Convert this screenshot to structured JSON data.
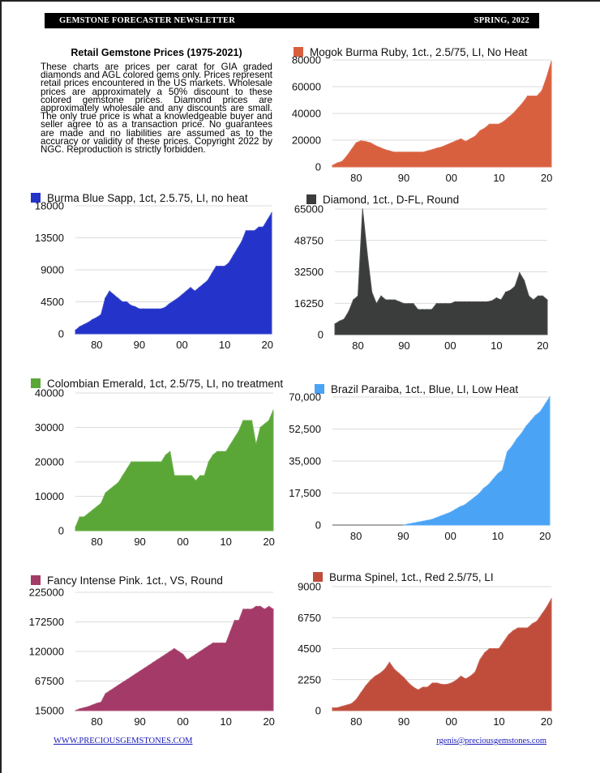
{
  "header": {
    "left": "GEMSTONE FORECASTER NEWSLETTER",
    "right": "SPRING, 2022"
  },
  "intro": {
    "title": "Retail Gemstone Prices (1975-2021)",
    "text": "These charts are prices per carat for GIA graded diamonds and AGL colored gems only. Prices represent retail prices encountered in the US markets. Wholesale prices are approximately a 50% discount to these colored gemstone prices. Diamond prices are approximately wholesale and any discounts are small. The only true price is what a knowledgeable buyer and seller agree to as a transaction price. No guarantees are made and no liabilities are assumed as to the accuracy or validity of these prices. Copyright 2022 by NGC. Reproduction is strictly forbidden."
  },
  "footer": {
    "left": "WWW.PRECIOUSGEMSTONES.COM",
    "right": "rgenis@preciousgemstones.com"
  },
  "chart_data": [
    {
      "type": "area",
      "id": "ruby",
      "title": "Mogok Burma Ruby, 1ct., 2.5/75, LI, No Heat",
      "color": "#d9603f",
      "x": [
        75,
        76,
        77,
        78,
        79,
        80,
        81,
        82,
        83,
        84,
        85,
        86,
        87,
        88,
        89,
        90,
        91,
        92,
        93,
        94,
        95,
        96,
        97,
        98,
        99,
        100,
        101,
        102,
        103,
        104,
        105,
        106,
        107,
        108,
        109,
        110,
        111,
        112,
        113,
        114,
        115,
        116,
        117,
        118,
        119,
        120,
        121
      ],
      "values": [
        1000,
        3000,
        4000,
        8000,
        13000,
        18000,
        19500,
        19000,
        18000,
        16000,
        14500,
        13000,
        12000,
        11000,
        11000,
        11000,
        11000,
        11000,
        11000,
        11000,
        12000,
        13000,
        14000,
        15000,
        16500,
        18000,
        19500,
        21000,
        19000,
        21000,
        23000,
        27000,
        29000,
        32000,
        32000,
        32000,
        34000,
        37000,
        40000,
        44000,
        48000,
        53000,
        53000,
        53000,
        57000,
        67000,
        79000
      ],
      "yticks": [
        0,
        20000,
        40000,
        60000,
        80000
      ],
      "ytick_labels": [
        "0",
        "20000",
        "40000",
        "60000",
        "80000"
      ],
      "ylim": [
        0,
        80000
      ],
      "xticks": [
        80,
        90,
        100,
        110,
        120
      ],
      "xtick_labels": [
        "80",
        "90",
        "00",
        "10",
        "20"
      ],
      "xlim": [
        75,
        121
      ]
    },
    {
      "type": "area",
      "id": "sapphire",
      "title": "Burma Blue Sapp, 1ct, 2.5.75, LI, no heat",
      "color": "#2433c9",
      "x": [
        75,
        76,
        77,
        78,
        79,
        80,
        81,
        82,
        83,
        84,
        85,
        86,
        87,
        88,
        89,
        90,
        91,
        92,
        93,
        94,
        95,
        96,
        97,
        98,
        99,
        100,
        101,
        102,
        103,
        104,
        105,
        106,
        107,
        108,
        109,
        110,
        111,
        112,
        113,
        114,
        115,
        116,
        117,
        118,
        119,
        120,
        121
      ],
      "values": [
        500,
        1000,
        1300,
        1600,
        2000,
        2300,
        2700,
        5000,
        6000,
        5500,
        5000,
        4500,
        4500,
        4000,
        3800,
        3500,
        3500,
        3500,
        3500,
        3500,
        3500,
        3700,
        4200,
        4600,
        5000,
        5500,
        6000,
        6500,
        6000,
        6500,
        7000,
        7500,
        8500,
        9500,
        9500,
        9500,
        10000,
        11000,
        12000,
        13000,
        14500,
        14500,
        14500,
        15000,
        15000,
        16000,
        17000
      ],
      "yticks": [
        0,
        4500,
        9000,
        13500,
        18000
      ],
      "ytick_labels": [
        "0",
        "4500",
        "9000",
        "13500",
        "18000"
      ],
      "ylim": [
        0,
        18000
      ],
      "xticks": [
        80,
        90,
        100,
        110,
        120
      ],
      "xtick_labels": [
        "80",
        "90",
        "00",
        "10",
        "20"
      ],
      "xlim": [
        75,
        121
      ]
    },
    {
      "type": "area",
      "id": "diamond",
      "title": "Diamond, 1ct., D-FL, Round",
      "color": "#3a3d3b",
      "x": [
        75,
        76,
        77,
        78,
        79,
        80,
        81,
        82,
        83,
        84,
        85,
        86,
        87,
        88,
        89,
        90,
        91,
        92,
        93,
        94,
        95,
        96,
        97,
        98,
        99,
        100,
        101,
        102,
        103,
        104,
        105,
        106,
        107,
        108,
        109,
        110,
        111,
        112,
        113,
        114,
        115,
        116,
        117,
        118,
        119,
        120,
        121
      ],
      "values": [
        5500,
        7000,
        8000,
        12000,
        18000,
        20000,
        65000,
        42000,
        22000,
        16000,
        20000,
        18000,
        18000,
        18000,
        17000,
        16000,
        16000,
        16000,
        13000,
        13000,
        13000,
        13000,
        16000,
        16000,
        16000,
        16000,
        17000,
        17000,
        17000,
        17000,
        17000,
        17000,
        17000,
        17000,
        17500,
        19000,
        18000,
        22000,
        23000,
        25000,
        32000,
        28000,
        20000,
        18000,
        20000,
        20000,
        18000
      ],
      "yticks": [
        0,
        16250,
        32500,
        48750,
        65000
      ],
      "ytick_labels": [
        "0",
        "16250",
        "32500",
        "48750",
        "65000"
      ],
      "ylim": [
        0,
        65000
      ],
      "xticks": [
        80,
        90,
        100,
        110,
        120
      ],
      "xtick_labels": [
        "80",
        "90",
        "00",
        "10",
        "20"
      ],
      "xlim": [
        75,
        121
      ]
    },
    {
      "type": "area",
      "id": "emerald",
      "title": "Colombian Emerald, 1ct, 2.5/75, LI, no treatment",
      "color": "#5aa737",
      "x": [
        75,
        76,
        77,
        78,
        79,
        80,
        81,
        82,
        83,
        84,
        85,
        86,
        87,
        88,
        89,
        90,
        91,
        92,
        93,
        94,
        95,
        96,
        97,
        98,
        99,
        100,
        101,
        102,
        103,
        104,
        105,
        106,
        107,
        108,
        109,
        110,
        111,
        112,
        113,
        114,
        115,
        116,
        117,
        118,
        119,
        120,
        121
      ],
      "values": [
        1000,
        4000,
        4000,
        5000,
        6000,
        7000,
        8000,
        11000,
        12000,
        13000,
        14000,
        16000,
        18000,
        20000,
        20000,
        20000,
        20000,
        20000,
        20000,
        20000,
        20000,
        22000,
        23000,
        16000,
        16000,
        16000,
        16000,
        16000,
        14500,
        16000,
        16000,
        20000,
        22000,
        23000,
        23000,
        23000,
        25000,
        27000,
        29000,
        32000,
        32000,
        32000,
        25000,
        30000,
        31000,
        32000,
        35000
      ],
      "yticks": [
        0,
        10000,
        20000,
        30000,
        40000
      ],
      "ytick_labels": [
        "0",
        "10000",
        "20000",
        "30000",
        "40000"
      ],
      "ylim": [
        0,
        40000
      ],
      "xticks": [
        80,
        90,
        100,
        110,
        120
      ],
      "xtick_labels": [
        "80",
        "90",
        "00",
        "10",
        "20"
      ],
      "xlim": [
        75,
        121
      ]
    },
    {
      "type": "area",
      "id": "paraiba",
      "title": "Brazil Paraiba, 1ct., Blue, LI, Low Heat",
      "color": "#4aa3f5",
      "x": [
        90,
        91,
        92,
        93,
        94,
        95,
        96,
        97,
        98,
        99,
        100,
        101,
        102,
        103,
        104,
        105,
        106,
        107,
        108,
        109,
        110,
        111,
        112,
        113,
        114,
        115,
        116,
        117,
        118,
        119,
        120,
        121
      ],
      "values": [
        0,
        500,
        1000,
        1500,
        2000,
        2500,
        3000,
        4000,
        5000,
        6000,
        7000,
        8500,
        10000,
        11000,
        13000,
        15000,
        17000,
        20000,
        22000,
        25000,
        28000,
        30000,
        40000,
        43000,
        47000,
        50000,
        54000,
        57000,
        60000,
        62000,
        66000,
        70000
      ],
      "yticks": [
        0,
        17500,
        35000,
        52500,
        70000
      ],
      "ytick_labels": [
        "0",
        "17,500",
        "35,000",
        "52,500",
        "70,000"
      ],
      "ylim": [
        0,
        70000
      ],
      "xticks": [
        80,
        90,
        100,
        110,
        120
      ],
      "xtick_labels": [
        "80",
        "90",
        "00",
        "10",
        "20"
      ],
      "xlim": [
        75,
        121
      ]
    },
    {
      "type": "area",
      "id": "pink",
      "title": "Fancy Intense Pink. 1ct., VS, Round",
      "color": "#a43a68",
      "x": [
        75,
        76,
        77,
        78,
        79,
        80,
        81,
        82,
        83,
        84,
        85,
        86,
        87,
        88,
        89,
        90,
        91,
        92,
        93,
        94,
        95,
        96,
        97,
        98,
        99,
        100,
        101,
        102,
        103,
        104,
        105,
        106,
        107,
        108,
        109,
        110,
        111,
        112,
        113,
        114,
        115,
        116,
        117,
        118,
        119,
        120,
        121
      ],
      "values": [
        15000,
        18000,
        20000,
        22000,
        25000,
        28000,
        30000,
        45000,
        50000,
        55000,
        60000,
        65000,
        70000,
        75000,
        80000,
        85000,
        90000,
        95000,
        100000,
        105000,
        110000,
        115000,
        120000,
        125000,
        120000,
        115000,
        105000,
        110000,
        115000,
        120000,
        125000,
        130000,
        135000,
        135000,
        135000,
        135000,
        155000,
        175000,
        175000,
        195000,
        195000,
        195000,
        200000,
        200000,
        195000,
        200000,
        195000
      ],
      "yticks": [
        15000,
        67500,
        120000,
        172500,
        225000
      ],
      "ytick_labels": [
        "15000",
        "67500",
        "120000",
        "172500",
        "225000"
      ],
      "ylim": [
        15000,
        225000
      ],
      "xticks": [
        80,
        90,
        100,
        110,
        120
      ],
      "xtick_labels": [
        "80",
        "90",
        "00",
        "10",
        "20"
      ],
      "xlim": [
        75,
        121
      ]
    },
    {
      "type": "area",
      "id": "spinel",
      "title": "Burma Spinel, 1ct., Red 2.5/75, LI",
      "color": "#c04d3c",
      "x": [
        75,
        76,
        77,
        78,
        79,
        80,
        81,
        82,
        83,
        84,
        85,
        86,
        87,
        88,
        89,
        90,
        91,
        92,
        93,
        94,
        95,
        96,
        97,
        98,
        99,
        100,
        101,
        102,
        103,
        104,
        105,
        106,
        107,
        108,
        109,
        110,
        111,
        112,
        113,
        114,
        115,
        116,
        117,
        118,
        119,
        120,
        121
      ],
      "values": [
        200,
        200,
        300,
        400,
        500,
        800,
        1300,
        1800,
        2200,
        2500,
        2700,
        3000,
        3500,
        3000,
        2700,
        2400,
        2000,
        1700,
        1500,
        1700,
        1700,
        2000,
        2000,
        1900,
        1900,
        2000,
        2200,
        2500,
        2300,
        2500,
        2800,
        3700,
        4200,
        4500,
        4500,
        4500,
        5000,
        5500,
        5800,
        6000,
        6000,
        6000,
        6300,
        6500,
        7000,
        7500,
        8100
      ],
      "yticks": [
        0,
        2250,
        4500,
        6750,
        9000
      ],
      "ytick_labels": [
        "0",
        "2250",
        "4500",
        "6750",
        "9000"
      ],
      "ylim": [
        0,
        9000
      ],
      "xticks": [
        80,
        90,
        100,
        110,
        120
      ],
      "xtick_labels": [
        "80",
        "90",
        "00",
        "10",
        "20"
      ],
      "xlim": [
        75,
        121
      ]
    }
  ]
}
